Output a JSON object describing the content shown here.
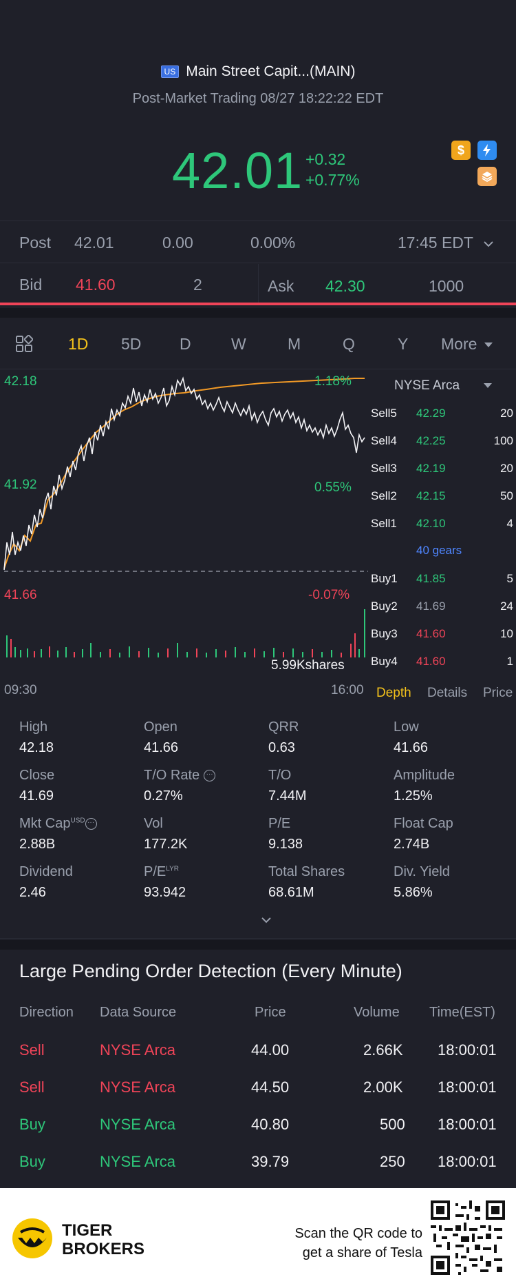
{
  "header": {
    "market_flag": "US",
    "title": "Main Street Capit...(MAIN)",
    "subtitle": "Post-Market Trading 08/27 18:22:22 EDT",
    "price": "42.01",
    "change": "+0.32",
    "change_pct": "+0.77%"
  },
  "post_row": {
    "label": "Post",
    "price": "42.01",
    "change": "0.00",
    "change_pct": "0.00%",
    "time": "17:45 EDT"
  },
  "bid_ask": {
    "bid_label": "Bid",
    "bid_price": "41.60",
    "bid_size": "2",
    "ask_label": "Ask",
    "ask_price": "42.30",
    "ask_size": "1000"
  },
  "period_tabs": [
    "1D",
    "5D",
    "D",
    "W",
    "M",
    "Q",
    "Y",
    "More"
  ],
  "active_period": "1D",
  "chart": {
    "y_top": "42.18",
    "y_mid": "41.92",
    "y_bottom": "41.66",
    "pct_top": "1.18%",
    "pct_mid": "0.55%",
    "pct_bottom": "-0.07%",
    "volume_label": "5.99Kshares",
    "x_start": "09:30",
    "x_end": "16:00"
  },
  "depth": {
    "exchange": "NYSE Arca",
    "sells": [
      {
        "label": "Sell5",
        "price": "42.29",
        "vol": "20"
      },
      {
        "label": "Sell4",
        "price": "42.25",
        "vol": "100"
      },
      {
        "label": "Sell3",
        "price": "42.19",
        "vol": "20"
      },
      {
        "label": "Sell2",
        "price": "42.15",
        "vol": "50"
      },
      {
        "label": "Sell1",
        "price": "42.10",
        "vol": "4"
      }
    ],
    "gears": "40 gears",
    "buys": [
      {
        "label": "Buy1",
        "price": "41.85",
        "vol": "5"
      },
      {
        "label": "Buy2",
        "price": "41.69",
        "vol": "24"
      },
      {
        "label": "Buy3",
        "price": "41.60",
        "vol": "10"
      },
      {
        "label": "Buy4",
        "price": "41.60",
        "vol": "1"
      }
    ],
    "tabs": [
      "Depth",
      "Details",
      "Price"
    ]
  },
  "stats": [
    {
      "k": "High",
      "v": "42.18"
    },
    {
      "k": "Open",
      "v": "41.66"
    },
    {
      "k": "QRR",
      "v": "0.63"
    },
    {
      "k": "Low",
      "v": "41.66"
    },
    {
      "k": "Close",
      "v": "41.69"
    },
    {
      "k": "T/O Rate",
      "v": "0.27%"
    },
    {
      "k": "T/O",
      "v": "7.44M"
    },
    {
      "k": "Amplitude",
      "v": "1.25%"
    },
    {
      "k": "Mkt Cap",
      "v": "2.88B",
      "sup": "USD"
    },
    {
      "k": "Vol",
      "v": "177.2K"
    },
    {
      "k": "P/E",
      "v": "9.138"
    },
    {
      "k": "Float Cap",
      "v": "2.74B"
    },
    {
      "k": "Dividend",
      "v": "2.46"
    },
    {
      "k": "P/E",
      "v": "93.942",
      "sup": "LYR"
    },
    {
      "k": "Total Shares",
      "v": "68.61M"
    },
    {
      "k": "Div. Yield",
      "v": "5.86%"
    }
  ],
  "orders": {
    "title": "Large Pending Order Detection (Every Minute)",
    "headers": [
      "Direction",
      "Data Source",
      "Price",
      "Volume",
      "Time(EST)"
    ],
    "rows": [
      {
        "dir": "Sell",
        "src": "NYSE Arca",
        "price": "44.00",
        "vol": "2.66K",
        "time": "18:00:01",
        "color": "#f04458"
      },
      {
        "dir": "Sell",
        "src": "NYSE Arca",
        "price": "44.50",
        "vol": "2.00K",
        "time": "18:00:01",
        "color": "#f04458"
      },
      {
        "dir": "Buy",
        "src": "NYSE Arca",
        "price": "40.80",
        "vol": "500",
        "time": "18:00:01",
        "color": "#2ec77a"
      },
      {
        "dir": "Buy",
        "src": "NYSE Arca",
        "price": "39.79",
        "vol": "250",
        "time": "18:00:01",
        "color": "#2ec77a"
      }
    ]
  },
  "footer": {
    "brand_line1": "TIGER",
    "brand_line2": "BROKERS",
    "scan_line1": "Scan the QR code to",
    "scan_line2": "get a share of Tesla"
  },
  "colors": {
    "up": "#2ec77a",
    "down": "#f04458",
    "accent": "#f4c21b",
    "background": "#1f2029"
  }
}
